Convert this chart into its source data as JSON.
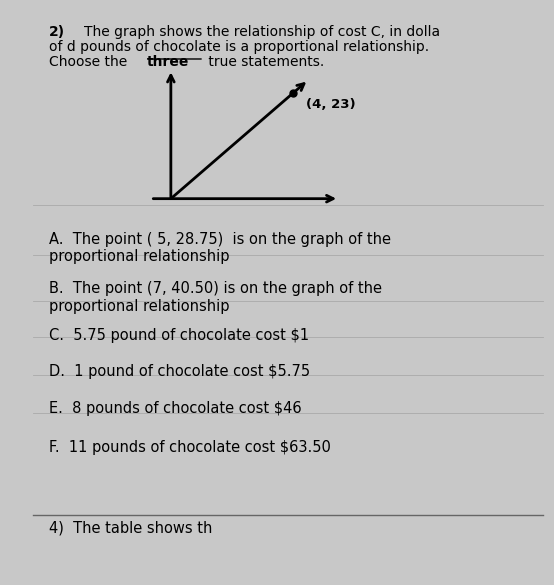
{
  "background_color": "#c8c8c8",
  "panel_color": "#ffffff",
  "point_label": "(4, 23)",
  "options": [
    {
      "label": "A.",
      "text": "The point ( 5, 28.75)  is on the graph of the\nproportional relationship"
    },
    {
      "label": "B.",
      "text": "The point (7, 40.50) is on the graph of the\nproportional relationship"
    },
    {
      "label": "C.",
      "text": "5.75 pound of chocolate cost $1"
    },
    {
      "label": "D.",
      "text": "1 pound of chocolate cost $5.75"
    },
    {
      "label": "E.",
      "text": "8 pounds of chocolate cost $46"
    },
    {
      "label": "F.",
      "text": "11 pounds of chocolate cost $63.50"
    }
  ],
  "footer_text": "4)  The table shows th",
  "text_color": "#000000",
  "font_size_question": 10.0,
  "font_size_options": 10.5,
  "font_size_footer": 10.5
}
